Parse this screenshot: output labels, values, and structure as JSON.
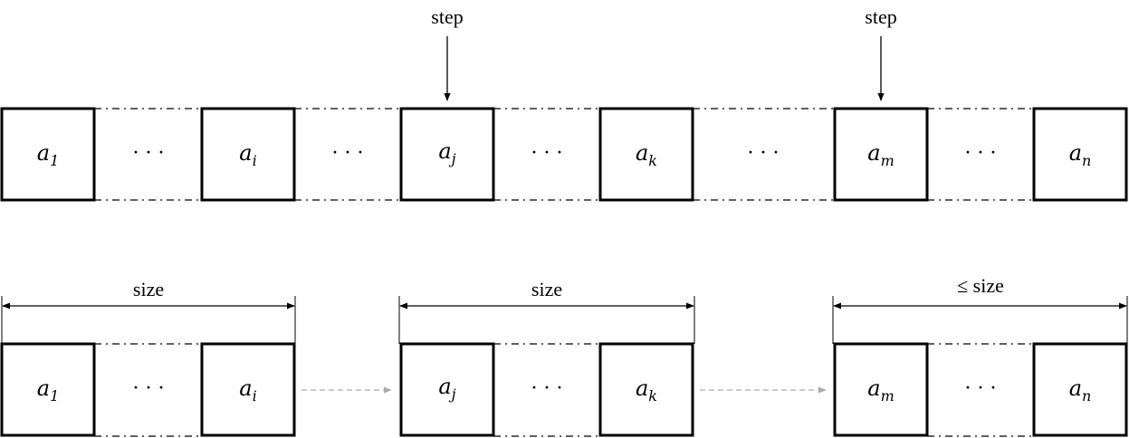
{
  "step_label": "step",
  "dots": "· · ·",
  "size_label": "size",
  "le_size_label": "≤ size",
  "elements": {
    "a1": {
      "base": "a",
      "sub": "1"
    },
    "ai": {
      "base": "a",
      "sub": "i"
    },
    "aj": {
      "base": "a",
      "sub": "j"
    },
    "ak": {
      "base": "a",
      "sub": "k"
    },
    "am": {
      "base": "a",
      "sub": "m"
    },
    "an": {
      "base": "a",
      "sub": "n"
    }
  }
}
